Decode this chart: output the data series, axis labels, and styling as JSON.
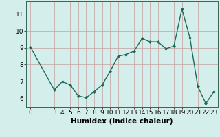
{
  "x": [
    0,
    3,
    4,
    5,
    6,
    7,
    8,
    9,
    10,
    11,
    12,
    13,
    14,
    15,
    16,
    17,
    18,
    19,
    20,
    21,
    22,
    23
  ],
  "y": [
    9.05,
    6.5,
    7.0,
    6.8,
    6.15,
    6.05,
    6.4,
    6.8,
    7.6,
    8.5,
    8.6,
    8.8,
    9.55,
    9.35,
    9.35,
    8.95,
    9.1,
    11.3,
    9.6,
    6.7,
    5.7,
    6.4
  ],
  "line_color": "#1a6b5a",
  "marker": "D",
  "marker_size": 2.0,
  "bg_color": "#d4eeeb",
  "grid_color": "#c8aaaa",
  "xlabel": "Humidex (Indice chaleur)",
  "xlim": [
    -0.5,
    23.5
  ],
  "ylim": [
    5.5,
    11.75
  ],
  "yticks": [
    6,
    7,
    8,
    9,
    10,
    11
  ],
  "xticks": [
    0,
    3,
    4,
    5,
    6,
    7,
    8,
    9,
    10,
    11,
    12,
    13,
    14,
    15,
    16,
    17,
    18,
    19,
    20,
    21,
    22,
    23
  ],
  "xlabel_fontsize": 7.5,
  "tick_fontsize": 6.5,
  "linewidth": 1.0
}
